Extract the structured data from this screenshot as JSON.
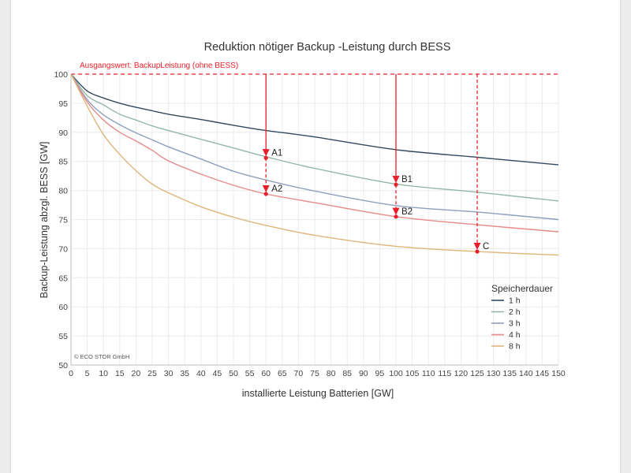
{
  "chart_data": {
    "type": "line",
    "title": "Reduktion nötiger Backup  -Leistung durch BESS",
    "xlabel": "installierte Leistung Batterien [GW]",
    "ylabel": "Backup-Leistung abzgl. BESS [GW]",
    "xlim": [
      0,
      150
    ],
    "ylim": [
      50,
      100
    ],
    "xticks": [
      0,
      5,
      10,
      15,
      20,
      25,
      30,
      35,
      40,
      45,
      50,
      55,
      60,
      65,
      70,
      75,
      80,
      85,
      90,
      95,
      100,
      105,
      110,
      115,
      120,
      125,
      130,
      135,
      140,
      145,
      150
    ],
    "yticks": [
      50,
      55,
      60,
      65,
      70,
      75,
      80,
      85,
      90,
      95,
      100
    ],
    "grid": true,
    "legend": {
      "title": "Speicherdauer",
      "position": "bottom-right"
    },
    "copyright": "© ECO STOR GmbH",
    "baseline": {
      "value": 100,
      "label": "Ausgangswert: BackupLeistung (ohne BESS)",
      "color": "#e8202a"
    },
    "x": [
      0,
      5,
      10,
      15,
      20,
      25,
      30,
      40,
      50,
      60,
      75,
      100,
      125,
      150
    ],
    "series": [
      {
        "name": "1 h",
        "color": "#34495e",
        "values": [
          100,
          97.1,
          95.9,
          95.0,
          94.3,
          93.7,
          93.1,
          92.2,
          91.2,
          90.3,
          89.2,
          87.0,
          85.7,
          84.4
        ]
      },
      {
        "name": "2 h",
        "color": "#95b7a4",
        "values": [
          100,
          96.3,
          94.7,
          93.1,
          92.1,
          91.1,
          90.3,
          88.8,
          87.3,
          85.8,
          83.8,
          81.1,
          79.7,
          78.2
        ]
      },
      {
        "name": "3 h",
        "color": "#8ea0bd",
        "values": [
          100,
          95.6,
          93.0,
          91.3,
          89.9,
          88.7,
          87.5,
          85.4,
          83.3,
          81.8,
          79.9,
          77.4,
          76.3,
          75.0
        ]
      },
      {
        "name": "4 h",
        "color": "#e68a8a",
        "values": [
          100,
          95.2,
          92.1,
          90.0,
          88.5,
          86.9,
          85.1,
          82.8,
          80.9,
          79.4,
          77.9,
          75.5,
          74.1,
          72.9
        ]
      },
      {
        "name": "8 h",
        "color": "#deb57a",
        "values": [
          100,
          94.5,
          89.6,
          86.2,
          83.4,
          81.1,
          79.6,
          77.2,
          75.4,
          74.0,
          72.3,
          70.4,
          69.5,
          68.9
        ]
      }
    ],
    "annotations": [
      {
        "label": "A1",
        "x": 60,
        "y": 85.6
      },
      {
        "label": "A2",
        "x": 60,
        "y": 79.4
      },
      {
        "label": "B1",
        "x": 100,
        "y": 81.0
      },
      {
        "label": "B2",
        "x": 100,
        "y": 75.5
      },
      {
        "label": "C",
        "x": 125,
        "y": 69.5
      }
    ],
    "arrows": [
      {
        "x": 60,
        "from": 100,
        "to": 85.6,
        "style": "solid"
      },
      {
        "x": 60,
        "from": 85.6,
        "to": 79.4,
        "style": "dashed"
      },
      {
        "x": 100,
        "from": 100,
        "to": 81.0,
        "style": "solid"
      },
      {
        "x": 100,
        "from": 81.0,
        "to": 75.5,
        "style": "dashed"
      },
      {
        "x": 125,
        "from": 100,
        "to": 69.5,
        "style": "dashed"
      }
    ]
  }
}
